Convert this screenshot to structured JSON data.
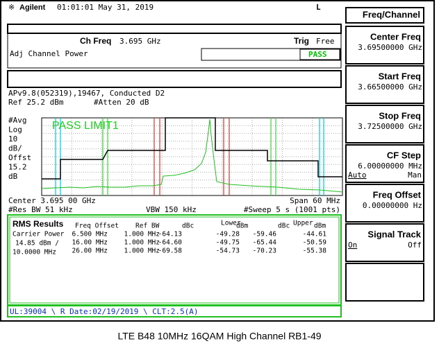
{
  "status_bar": {
    "brand": "Agilent",
    "datetime": "01:01:01  May 31, 2019",
    "flag": "L"
  },
  "menu": {
    "title": "Freq/Channel",
    "softkeys": [
      {
        "label": "Center Freq",
        "value": "3.69500000 GHz"
      },
      {
        "label": "Start Freq",
        "value": "3.66500000 GHz"
      },
      {
        "label": "Stop Freq",
        "value": "3.72500000 GHz"
      },
      {
        "label": "CF Step",
        "value": "6.00000000 MHz",
        "options": [
          "Auto",
          "Man"
        ]
      },
      {
        "label": "Freq Offset",
        "value": "0.00000000 Hz"
      },
      {
        "label": "Signal Track",
        "options": [
          "On",
          "Off"
        ]
      }
    ]
  },
  "header": {
    "ch_freq_label": "Ch Freq",
    "ch_freq": "3.695 GHz",
    "trig_label": "Trig",
    "trig": "Free",
    "mode": "Adj Channel Power",
    "verdict": "PASS"
  },
  "info": {
    "title": "APv9.8(052319),19467, Conducted D2",
    "ref": "Ref 25.2 dBm",
    "atten": "#Atten 20 dB",
    "scale_labels": [
      "#Avg",
      "Log",
      "10",
      "dB/",
      "Offst",
      "15.2",
      "dB"
    ],
    "limit_status": "PASS LIMIT1",
    "center": "Center 3.695 00 GHz",
    "span": "Span 60 MHz",
    "res_bw": "#Res BW 51 kHz",
    "vbw": "VBW 150 kHz",
    "sweep": "#Sweep 5 s (1001 pts)"
  },
  "results": {
    "title": "RMS Results",
    "columns": [
      "Freq Offset",
      "Ref BW",
      "dBc",
      "Lower",
      "dBm",
      "dBc",
      "Upper",
      "dBm"
    ],
    "carrier": [
      "Carrier Power",
      "14.85 dBm /",
      "10.0000 MHz"
    ],
    "rows": [
      [
        "6.500 MHz",
        "1.000 MHz",
        "-64.13",
        "-49.28",
        "-59.46",
        "-44.61"
      ],
      [
        "16.00 MHz",
        "1.000 MHz",
        "-64.60",
        "-49.75",
        "-65.44",
        "-50.59"
      ],
      [
        "26.00 MHz",
        "1.000 MHz",
        "-69.58",
        "-54.73",
        "-70.23",
        "-55.38"
      ]
    ]
  },
  "footer": "UL:39004 \\ R Date:02/19/2019 \\ CLT:2.5(A)",
  "caption": "LTE B48 10MHz 16QAM High Channel RB1-49"
}
